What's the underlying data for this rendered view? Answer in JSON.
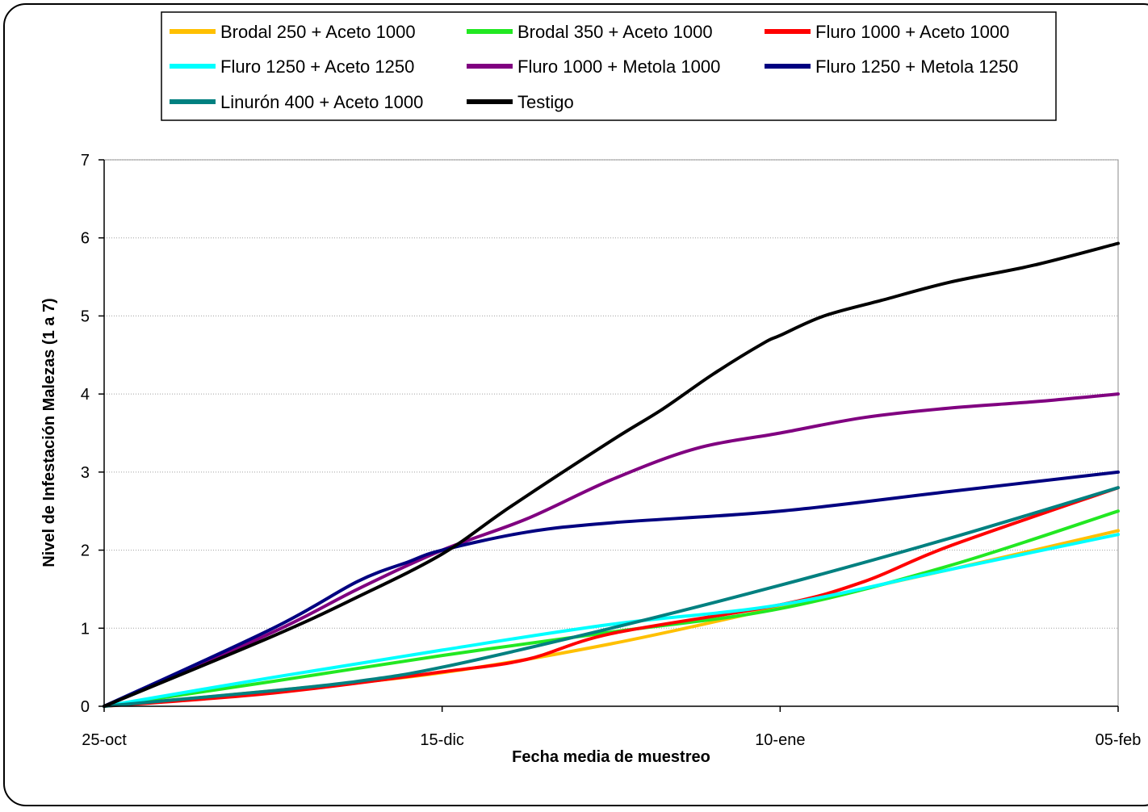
{
  "chart_data": {
    "type": "line",
    "xlabel": "Fecha media de muestreo",
    "ylabel": "Nivel de Infestación Malezas (1 a 7)",
    "ylim": [
      0,
      7
    ],
    "yticks": [
      "0",
      "1",
      "2",
      "3",
      "4",
      "5",
      "6",
      "7"
    ],
    "x_ticks": [
      "25-oct",
      "15-dic",
      "10-ene",
      "05-feb"
    ],
    "x_range": [
      0,
      3
    ],
    "grid": "horizontal",
    "legend_position": "top",
    "series": [
      {
        "name": "Brodal 250 + Aceto 1000",
        "color": "#FFC000",
        "points": [
          [
            0,
            0
          ],
          [
            0.5,
            0.2
          ],
          [
            1,
            0.43
          ],
          [
            1.5,
            0.8
          ],
          [
            2,
            1.27
          ],
          [
            2.5,
            1.75
          ],
          [
            3,
            2.25
          ]
        ]
      },
      {
        "name": "Brodal 350 + Aceto 1000",
        "color": "#22E822",
        "points": [
          [
            0,
            0
          ],
          [
            0.5,
            0.32
          ],
          [
            1,
            0.65
          ],
          [
            1.5,
            0.95
          ],
          [
            2,
            1.25
          ],
          [
            2.5,
            1.8
          ],
          [
            3,
            2.5
          ]
        ]
      },
      {
        "name": "Fluro 1000 + Aceto 1000",
        "color": "#FF0000",
        "points": [
          [
            0,
            0
          ],
          [
            0.5,
            0.17
          ],
          [
            1,
            0.44
          ],
          [
            1.25,
            0.6
          ],
          [
            1.5,
            0.93
          ],
          [
            2,
            1.3
          ],
          [
            2.25,
            1.6
          ],
          [
            2.5,
            2.05
          ],
          [
            3,
            2.8
          ]
        ]
      },
      {
        "name": "Fluro 1250 + Aceto 1250",
        "color": "#00FFFF",
        "points": [
          [
            0,
            0
          ],
          [
            0.5,
            0.37
          ],
          [
            1,
            0.72
          ],
          [
            1.5,
            1.05
          ],
          [
            2,
            1.3
          ],
          [
            2.5,
            1.75
          ],
          [
            3,
            2.2
          ]
        ]
      },
      {
        "name": "Fluro 1000 + Metola 1000",
        "color": "#800080",
        "points": [
          [
            0,
            0
          ],
          [
            0.5,
            0.95
          ],
          [
            0.75,
            1.5
          ],
          [
            1,
            2.0
          ],
          [
            1.25,
            2.4
          ],
          [
            1.5,
            2.9
          ],
          [
            1.75,
            3.3
          ],
          [
            2,
            3.5
          ],
          [
            2.25,
            3.7
          ],
          [
            2.5,
            3.82
          ],
          [
            2.75,
            3.9
          ],
          [
            3,
            4.0
          ]
        ]
      },
      {
        "name": "Fluro 1250 + Metola 1250",
        "color": "#000080",
        "points": [
          [
            0,
            0
          ],
          [
            0.5,
            1.0
          ],
          [
            0.75,
            1.6
          ],
          [
            0.9,
            1.85
          ],
          [
            1,
            2.0
          ],
          [
            1.25,
            2.23
          ],
          [
            1.5,
            2.35
          ],
          [
            2,
            2.5
          ],
          [
            2.5,
            2.75
          ],
          [
            3,
            3.0
          ]
        ]
      },
      {
        "name": "Linurón 400 + Aceto 1000",
        "color": "#008080",
        "points": [
          [
            0,
            0
          ],
          [
            0.5,
            0.2
          ],
          [
            0.75,
            0.32
          ],
          [
            1,
            0.5
          ],
          [
            1.5,
            1.0
          ],
          [
            2,
            1.55
          ],
          [
            2.5,
            2.15
          ],
          [
            3,
            2.8
          ]
        ]
      },
      {
        "name": "Testigo",
        "color": "#000000",
        "points": [
          [
            0,
            0
          ],
          [
            0.5,
            0.9
          ],
          [
            0.75,
            1.4
          ],
          [
            1,
            1.95
          ],
          [
            1.2,
            2.55
          ],
          [
            1.5,
            3.4
          ],
          [
            1.65,
            3.8
          ],
          [
            1.8,
            4.25
          ],
          [
            1.95,
            4.65
          ],
          [
            2,
            4.75
          ],
          [
            2.13,
            5.0
          ],
          [
            2.3,
            5.2
          ],
          [
            2.5,
            5.43
          ],
          [
            2.75,
            5.65
          ],
          [
            3,
            5.93
          ]
        ]
      }
    ]
  }
}
